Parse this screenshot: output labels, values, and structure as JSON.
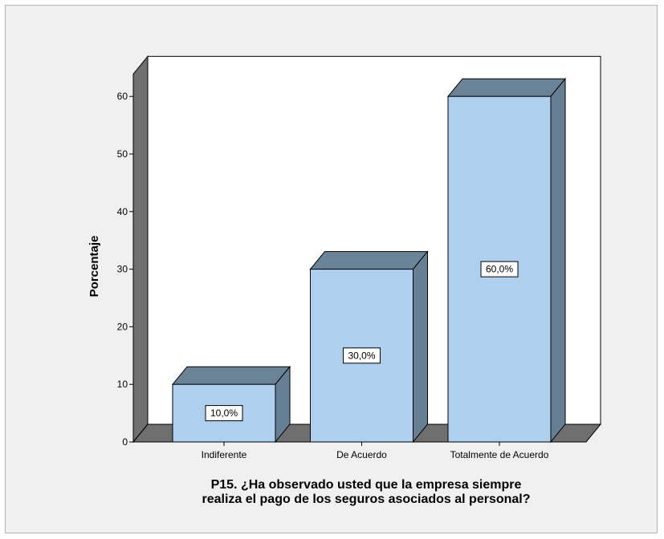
{
  "chart_data": {
    "type": "bar",
    "categories": [
      "Indiferente",
      "De Acuerdo",
      "Totalmente de Acuerdo"
    ],
    "values": [
      10,
      30,
      60
    ],
    "data_labels": [
      "10,0%",
      "30,0%",
      "60,0%"
    ],
    "title_lines": [
      "P15. ¿Ha observado usted que la empresa siempre",
      "realiza el pago de los seguros asociados al personal?"
    ],
    "xlabel": "",
    "ylabel": "Porcentaje",
    "yticks": [
      "0",
      "10",
      "20",
      "30",
      "40",
      "50",
      "60"
    ],
    "ylim": [
      0,
      65
    ],
    "grid": false,
    "legend": "none",
    "three_d": true
  },
  "colors": {
    "frame_bg": "#f0f0f0",
    "plot_bg": "#ffffff",
    "bar_front": "#aecfee",
    "bar_top": "#6b8396",
    "bar_side": "#677f92",
    "floor": "#6f6f6f",
    "wall": "#6f6f6f",
    "outline": "#000000"
  }
}
